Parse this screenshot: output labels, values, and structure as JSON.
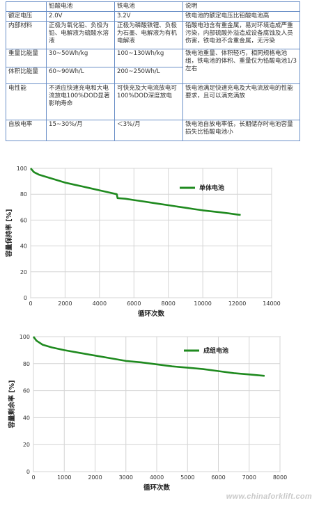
{
  "table": {
    "headers": [
      "",
      "铅酸电池",
      "铁电池",
      "说明"
    ],
    "rows": [
      [
        "额定电压",
        "2.0V",
        "3.2V",
        "铁电池的额定电压比铅酸电池高"
      ],
      [
        "内部材料",
        "正极为氧化铅、负极为铅、电解液为硫酸水溶液",
        "正极为磷酸铁锂、负极为石墨、电解液为有机电解液",
        "铅酸电池含有重金属，易对环境造成严重污染，内部硫酸外溢造成设备腐蚀及人员伤害，铁电池不含重金属，无污染"
      ],
      [
        "重量比能量",
        "30~50Wh/kg",
        "100~130Wh/kg",
        "铁电池重量、体积轻巧，相同规格电池组，铁电池的体积、重量仅为铅酸电池1/3左右"
      ],
      [
        "体积比能量",
        "60~90Wh/L",
        "200~250Wh/L",
        ""
      ],
      [
        "电性能",
        "不适应快速充电和大电流放电100%DOD显著影响寿命",
        "可快充及大电流放电可100%DOD深度放电",
        "铁电池满足快速充电及大电流放电的性能要求，且可以满充满放"
      ],
      [
        "自放电率",
        "15~30%/月",
        "＜3%/月",
        "铁电池自放电率低，长期储存时电池容量损失比铅酸电池小"
      ]
    ]
  },
  "chart_data": [
    {
      "type": "line",
      "ylabel": "容量保持率 [%]",
      "xlabel": "循环次数",
      "xlim": [
        0,
        14000
      ],
      "ylim": [
        0,
        100
      ],
      "xticks": [
        0,
        2000,
        4000,
        6000,
        8000,
        10000,
        12000,
        14000
      ],
      "yticks": [
        0,
        20,
        40,
        60,
        80,
        100
      ],
      "grid": true,
      "legend_position": "top-right",
      "color": "#1f8a1f",
      "series": [
        {
          "name": "单体电池",
          "x": [
            0,
            200,
            500,
            1000,
            1500,
            2000,
            2500,
            3000,
            3500,
            4000,
            4500,
            5000,
            5050,
            5500,
            6000,
            6500,
            7000,
            7500,
            8000,
            8500,
            9000,
            9500,
            10000,
            10500,
            11000,
            11500,
            12000,
            12200
          ],
          "y": [
            100,
            97,
            95,
            93,
            91,
            89,
            87.5,
            86,
            84.5,
            83,
            81.5,
            80,
            77,
            76.5,
            75.5,
            74.5,
            73.5,
            72.5,
            71.5,
            70.5,
            69.5,
            68.5,
            67.5,
            66.8,
            66,
            65.2,
            64.3,
            64
          ]
        }
      ]
    },
    {
      "type": "line",
      "ylabel": "容量剩余率 [%]",
      "xlabel": "循环次数",
      "xlim": [
        0,
        8000
      ],
      "ylim": [
        0,
        100
      ],
      "xticks": [
        0,
        1000,
        2000,
        3000,
        4000,
        5000,
        6000,
        7000,
        8000
      ],
      "yticks": [
        0,
        20,
        40,
        60,
        80,
        100
      ],
      "grid": true,
      "legend_position": "top-right",
      "color": "#1f8a1f",
      "series": [
        {
          "name": "成组电池",
          "x": [
            0,
            100,
            300,
            600,
            1000,
            1500,
            2000,
            2500,
            3000,
            3500,
            4000,
            4500,
            5000,
            5500,
            6000,
            6500,
            7000,
            7500
          ],
          "y": [
            100,
            97,
            94,
            92,
            90,
            88,
            86,
            84,
            82,
            81,
            79.5,
            78,
            77,
            76,
            74.5,
            73,
            72,
            71
          ]
        }
      ]
    }
  ],
  "watermark": "www.chinaforklift.com"
}
